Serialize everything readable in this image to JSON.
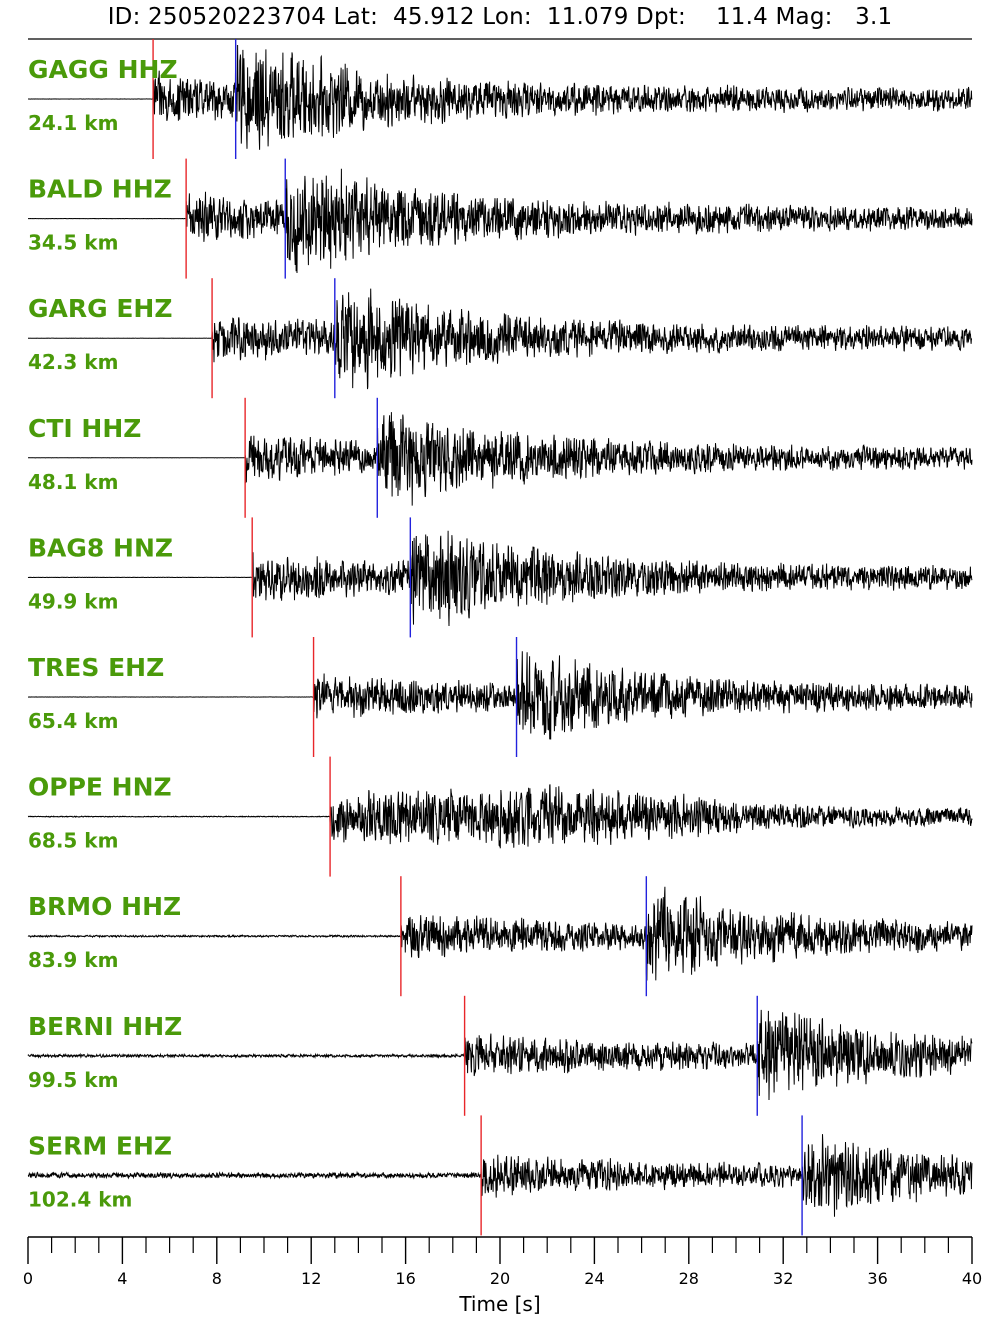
{
  "title": "ID: 250520223704 Lat:  45.912 Lon:  11.079 Dpt:    11.4 Mag:   3.1",
  "chart_data": {
    "type": "line",
    "xlabel": "Time [s]",
    "xlim": [
      0,
      40
    ],
    "x_ticks": [
      0,
      4,
      8,
      12,
      16,
      20,
      24,
      28,
      32,
      36,
      40
    ],
    "x_minor_step": 1,
    "p_pick_color": "#e8262a",
    "s_pick_color": "#2222dd",
    "label_color": "#4a9a0a",
    "trace_color": "#000000",
    "traces": [
      {
        "station": "GAGG HHZ",
        "distance": "24.1 km",
        "p_pick": 5.3,
        "s_pick": 8.8,
        "amp": 1.0,
        "noise": 0.002
      },
      {
        "station": "BALD HHZ",
        "distance": "34.5 km",
        "p_pick": 6.7,
        "s_pick": 10.9,
        "amp": 1.0,
        "noise": 0.002
      },
      {
        "station": "GARG EHZ",
        "distance": "42.3 km",
        "p_pick": 7.8,
        "s_pick": 13.0,
        "amp": 0.95,
        "noise": 0.002
      },
      {
        "station": "CTI HHZ",
        "distance": "48.1 km",
        "p_pick": 9.2,
        "s_pick": 14.8,
        "amp": 0.9,
        "noise": 0.002
      },
      {
        "station": "BAG8 HNZ",
        "distance": "49.9 km",
        "p_pick": 9.5,
        "s_pick": 16.2,
        "amp": 0.95,
        "noise": 0.003
      },
      {
        "station": "TRES EHZ",
        "distance": "65.4 km",
        "p_pick": 12.1,
        "s_pick": 20.7,
        "amp": 0.9,
        "noise": 0.003
      },
      {
        "station": "OPPE HNZ",
        "distance": "68.5 km",
        "p_pick": 12.8,
        "s_pick": null,
        "amp": 0.9,
        "noise": 0.01
      },
      {
        "station": "BRMO HHZ",
        "distance": "83.9 km",
        "p_pick": 15.8,
        "s_pick": 26.2,
        "amp": 0.9,
        "noise": 0.02
      },
      {
        "station": "BERNI HHZ",
        "distance": "99.5 km",
        "p_pick": 18.5,
        "s_pick": 30.9,
        "amp": 0.9,
        "noise": 0.03
      },
      {
        "station": "SERM EHZ",
        "distance": "102.4 km",
        "p_pick": 19.2,
        "s_pick": 32.8,
        "amp": 0.85,
        "noise": 0.06
      }
    ]
  }
}
